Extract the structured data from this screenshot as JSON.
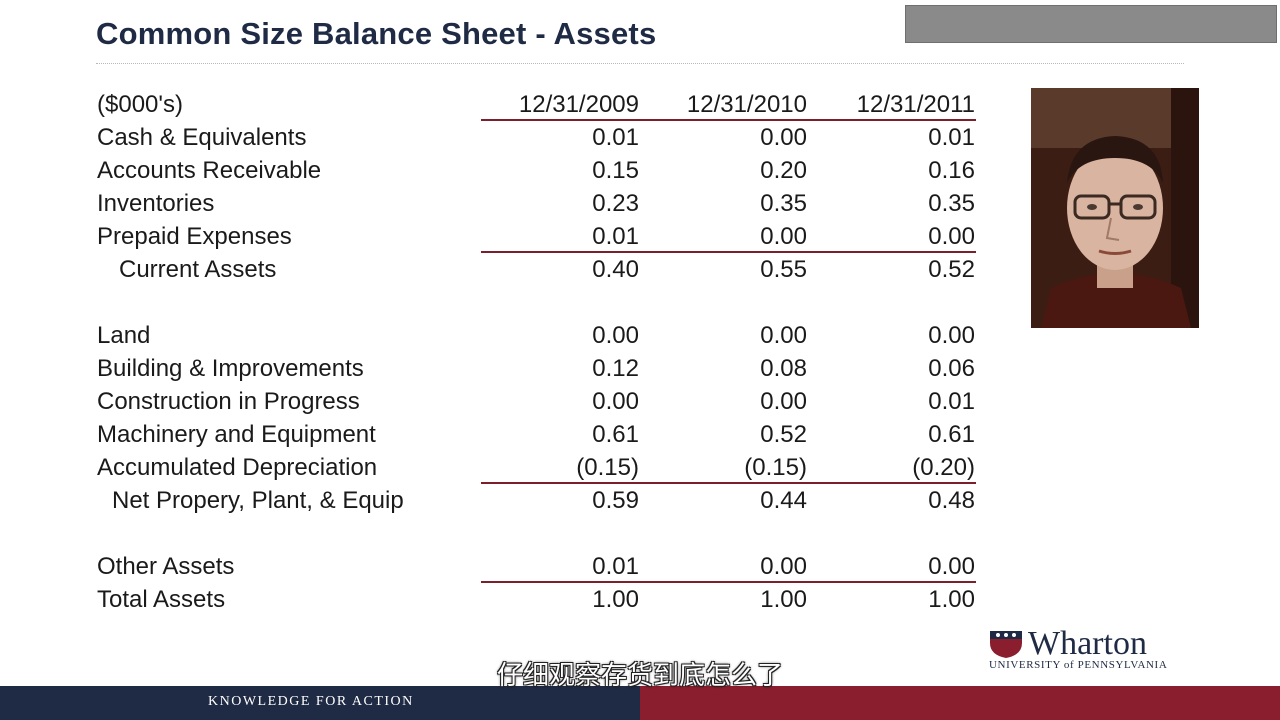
{
  "slide": {
    "title": "Common Size Balance Sheet - Assets",
    "footer": "KNOWLEDGE FOR ACTION",
    "subtitle_cn": "仔细观察存货到底怎么了"
  },
  "logo": {
    "name": "Wharton",
    "subtitle": "UNIVERSITY of PENNSYLVANIA"
  },
  "table": {
    "header": {
      "label": "($000's)",
      "cols": [
        "12/31/2009",
        "12/31/2010",
        "12/31/2011"
      ]
    },
    "rows": [
      {
        "label": "Cash & Equivalents",
        "values": [
          "0.01",
          "0.00",
          "0.01"
        ]
      },
      {
        "label": "Accounts Receivable",
        "values": [
          "0.15",
          "0.20",
          "0.16"
        ]
      },
      {
        "label": "Inventories",
        "values": [
          "0.23",
          "0.35",
          "0.35"
        ]
      },
      {
        "label": "Prepaid Expenses",
        "values": [
          "0.01",
          "0.00",
          "0.00"
        ]
      },
      {
        "label": "Current Assets",
        "values": [
          "0.40",
          "0.55",
          "0.52"
        ]
      },
      {
        "label": "Land",
        "values": [
          "0.00",
          "0.00",
          "0.00"
        ]
      },
      {
        "label": "Building & Improvements",
        "values": [
          "0.12",
          "0.08",
          "0.06"
        ]
      },
      {
        "label": "Construction in Progress",
        "values": [
          "0.00",
          "0.00",
          "0.01"
        ]
      },
      {
        "label": "Machinery and Equipment",
        "values": [
          "0.61",
          "0.52",
          "0.61"
        ]
      },
      {
        "label": "Accumulated Depreciation",
        "values": [
          "(0.15)",
          "(0.15)",
          "(0.20)"
        ]
      },
      {
        "label": "Net Propery, Plant, & Equip",
        "values": [
          "0.59",
          "0.44",
          "0.48"
        ]
      },
      {
        "label": "Other Assets",
        "values": [
          "0.01",
          "0.00",
          "0.00"
        ]
      },
      {
        "label": "Total Assets",
        "values": [
          "1.00",
          "1.00",
          "1.00"
        ]
      }
    ]
  },
  "colors": {
    "title": "#1f2a44",
    "rule": "#7a1f2b",
    "footer_left": "#1f2a44",
    "footer_right": "#8a1e2e"
  }
}
